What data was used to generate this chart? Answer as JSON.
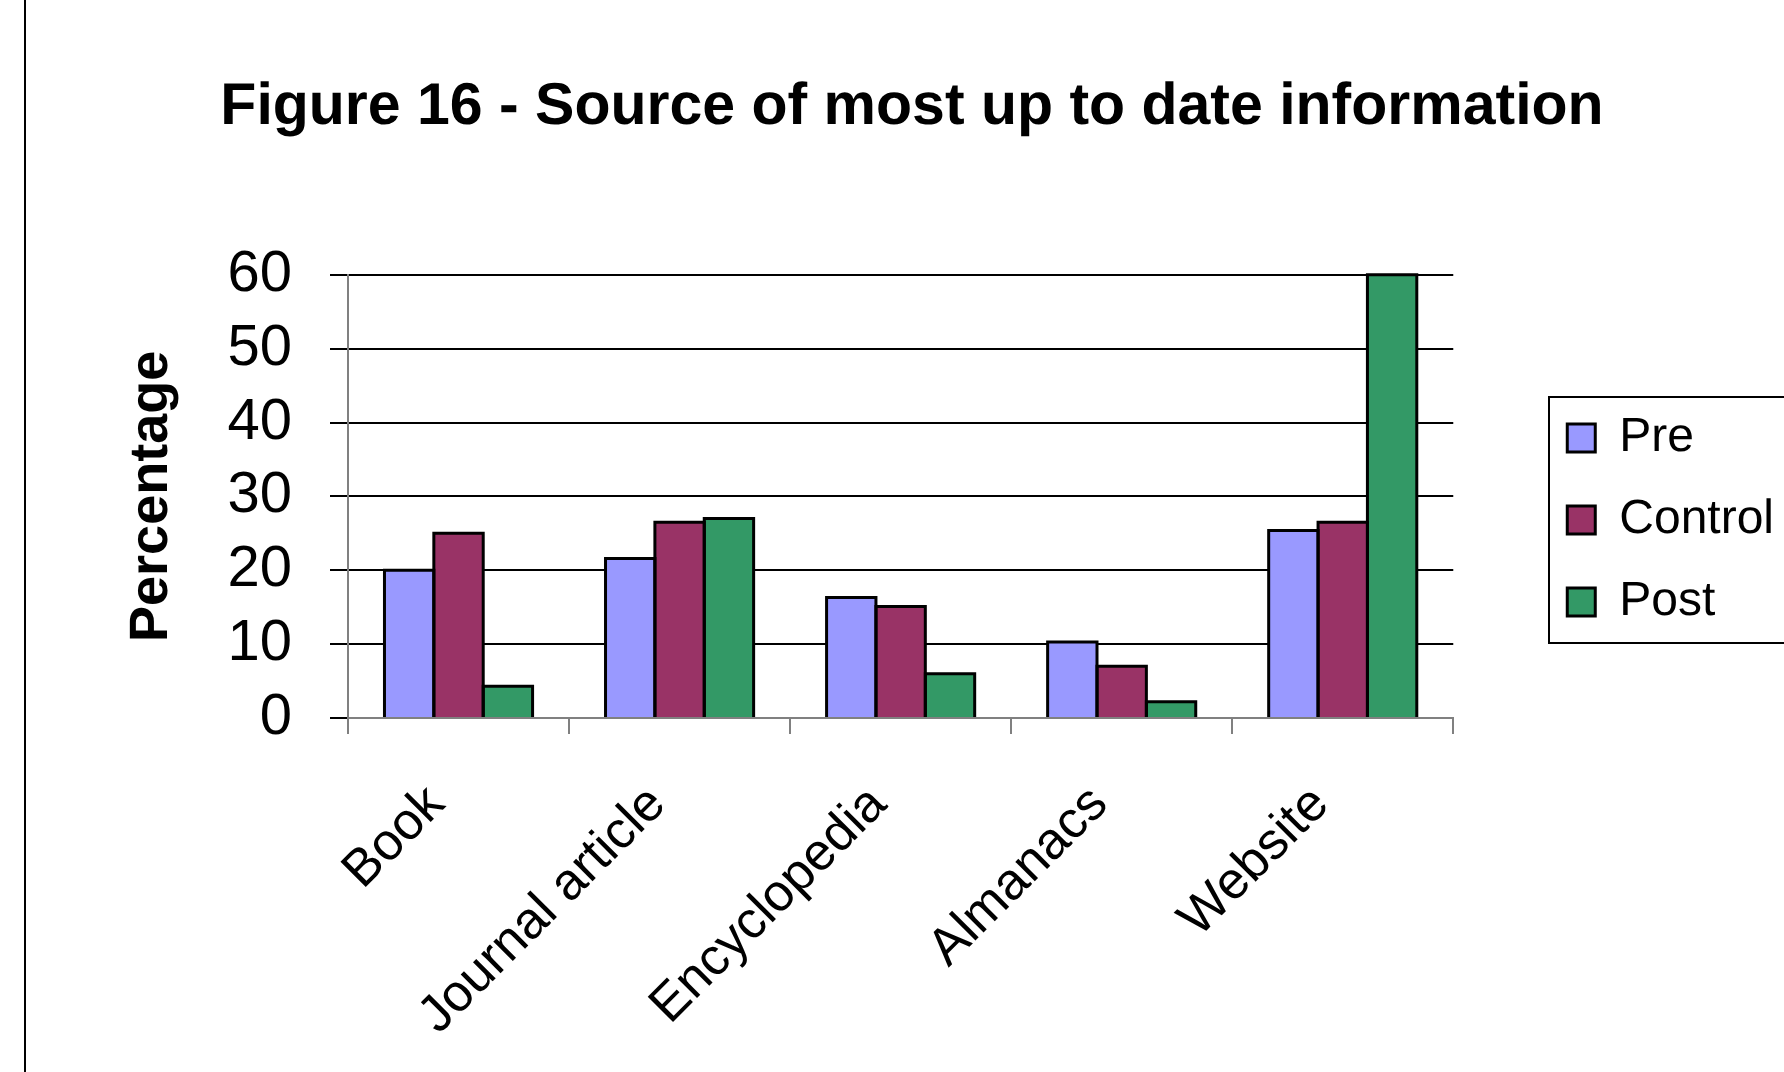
{
  "chart_data": {
    "type": "bar",
    "title": "Figure 16 - Source of most up to date information",
    "ylabel": "Percentage",
    "categories": [
      "Book",
      "Journal article",
      "Encyclopedia",
      "Almanacs",
      "Website"
    ],
    "series": [
      {
        "name": "Pre",
        "color": "#9999ff",
        "values": [
          20,
          21.6,
          16.3,
          10.3,
          25.4
        ]
      },
      {
        "name": "Control",
        "color": "#993366",
        "values": [
          25,
          26.5,
          15.1,
          7,
          26.5
        ]
      },
      {
        "name": "Post",
        "color": "#339966",
        "values": [
          4.3,
          27,
          6,
          2.2,
          60
        ]
      }
    ],
    "ylim": [
      0,
      60
    ],
    "yticks": [
      0,
      10,
      20,
      30,
      40,
      50,
      60
    ],
    "grid": "y",
    "legend": "right"
  }
}
